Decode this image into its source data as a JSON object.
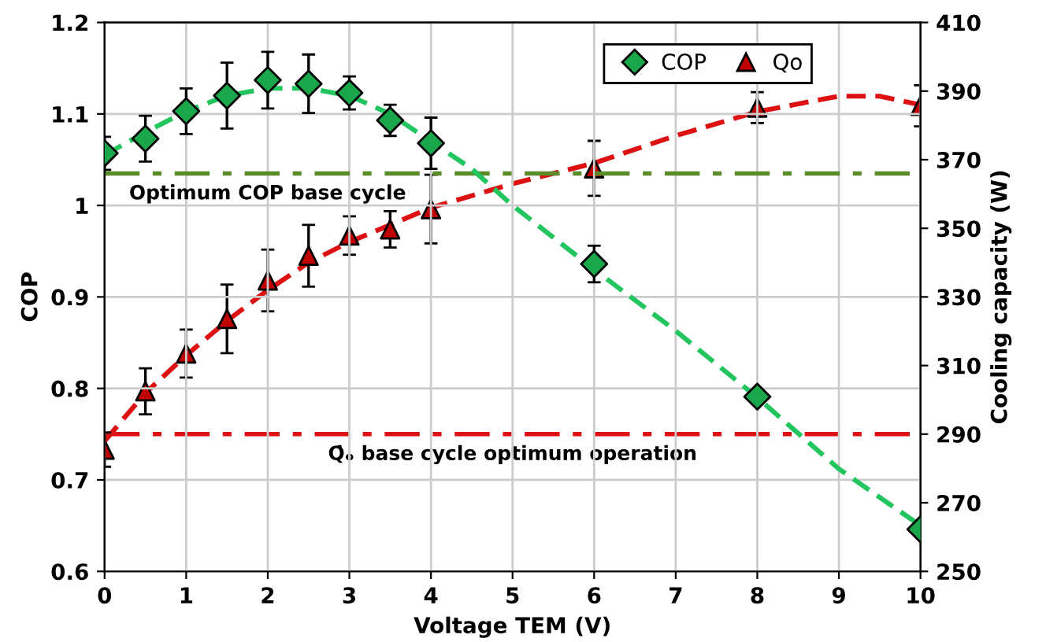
{
  "chart_data": {
    "type": "scatter",
    "xlabel": "Voltage TEM (V)",
    "ylabel": "COP",
    "y2label": "Cooling capacity (W)",
    "xlim": [
      0,
      10
    ],
    "xticks": [
      0,
      1,
      2,
      3,
      4,
      5,
      6,
      7,
      8,
      9,
      10
    ],
    "ylim": [
      0.6,
      1.2
    ],
    "yticks": [
      0.6,
      0.7,
      0.8,
      0.9,
      1,
      1.1,
      1.2
    ],
    "y2lim": [
      250,
      410
    ],
    "y2ticks": [
      250,
      270,
      290,
      310,
      330,
      350,
      370,
      390,
      410
    ],
    "grid": true,
    "legend": "top right",
    "series": [
      {
        "name": "COP",
        "marker": "diamond",
        "color": "#1aa64a",
        "x": [
          0,
          0.5,
          1,
          1.5,
          2,
          2.5,
          3,
          3.5,
          4,
          6,
          8,
          10
        ],
        "values": [
          1.057,
          1.073,
          1.103,
          1.12,
          1.137,
          1.133,
          1.123,
          1.093,
          1.068,
          0.936,
          0.791,
          0.646
        ],
        "errors": [
          0.018,
          0.025,
          0.025,
          0.036,
          0.031,
          0.032,
          0.018,
          0.017,
          0.028,
          0.02,
          0.007,
          0.005
        ]
      },
      {
        "name": "Qo",
        "axis": "y2",
        "marker": "triangle",
        "color": "#c00000",
        "x": [
          0,
          0.5,
          1,
          1.5,
          2,
          2.5,
          3,
          3.5,
          4,
          6,
          8,
          10
        ],
        "values": [
          285.5,
          302.5,
          313.5,
          323.6,
          334.8,
          342,
          347.9,
          349.7,
          355.6,
          367.5,
          385.2,
          385.7
        ],
        "errors": [
          5,
          6.7,
          7,
          10,
          9,
          9,
          5.6,
          5.3,
          10,
          8,
          4.5,
          6
        ]
      },
      {
        "type": "line",
        "line_style": "dashed",
        "color": "#22c55e",
        "x": [
          0,
          0.5,
          1,
          1.5,
          2,
          2.5,
          3,
          3.5,
          4,
          4.5,
          5,
          6,
          7,
          8,
          9,
          10
        ],
        "values": [
          1.055,
          1.08,
          1.103,
          1.12,
          1.128,
          1.128,
          1.12,
          1.1,
          1.07,
          1.04,
          1.0,
          0.93,
          0.863,
          0.79,
          0.712,
          0.65
        ]
      },
      {
        "type": "line",
        "axis": "y2",
        "line_style": "dashed",
        "color": "#dd1111",
        "x": [
          0,
          0.5,
          1,
          1.5,
          2,
          2.5,
          3,
          3.5,
          4,
          5,
          6,
          7,
          8,
          9,
          9.5,
          10
        ],
        "values": [
          288,
          302,
          313,
          323,
          332,
          340,
          346,
          351,
          356,
          363,
          369,
          377,
          384,
          388.5,
          388.5,
          386
        ]
      }
    ],
    "ref_lines": [
      {
        "axis": "y",
        "value": 1.035,
        "label": "Optimum COP base cycle",
        "color": "#5b8c2a",
        "line_style": "dashdot"
      },
      {
        "axis": "y2",
        "value": 290,
        "label": "Q̇ₒ base cycle optimum operation",
        "color": "#dd1111",
        "line_style": "dashdot"
      }
    ]
  }
}
